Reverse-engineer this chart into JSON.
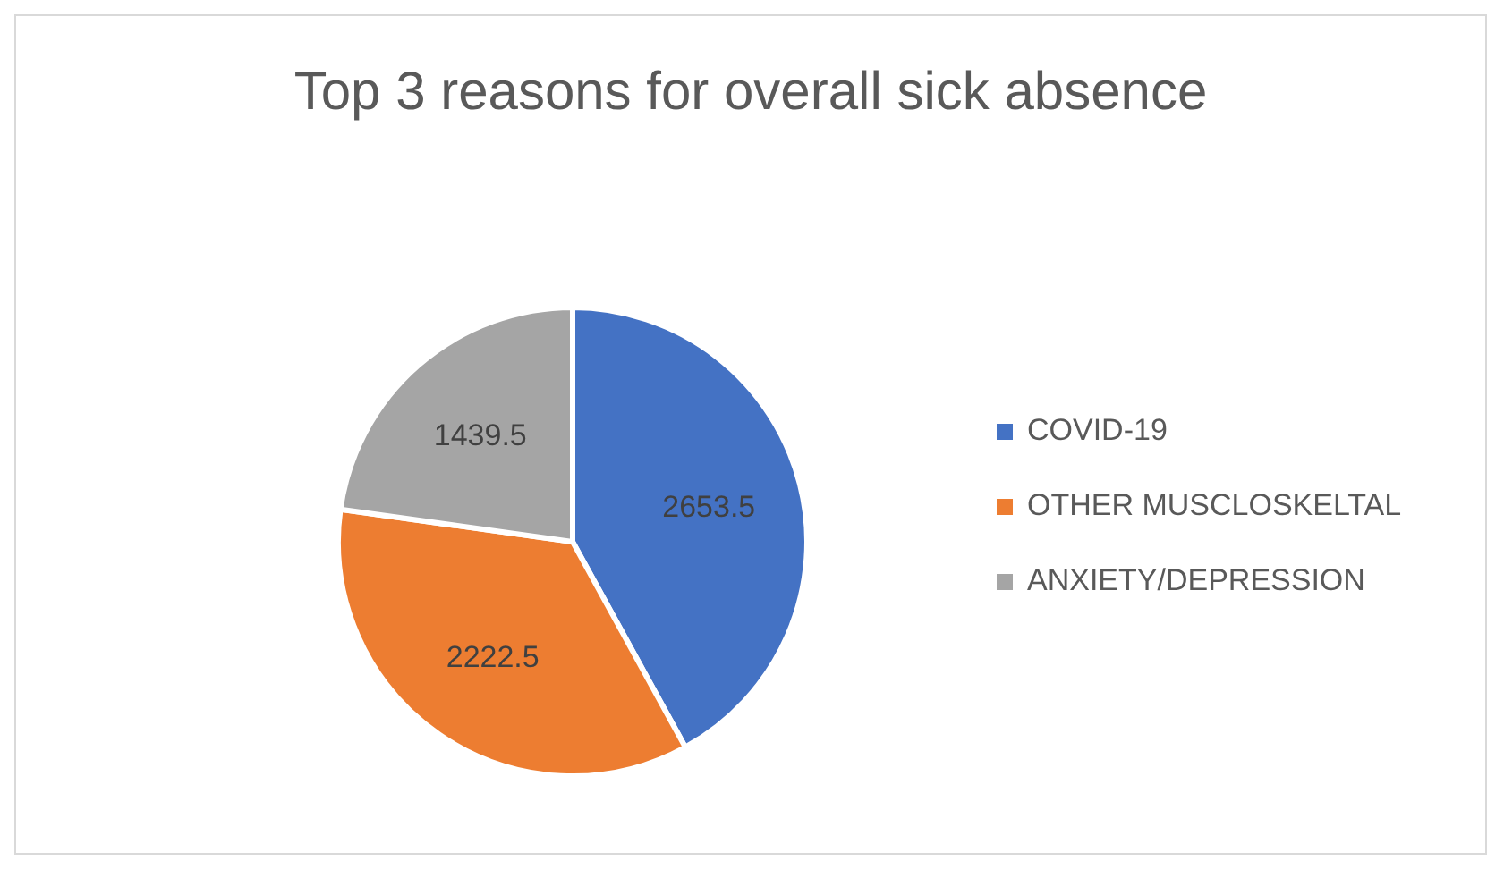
{
  "chart_data": {
    "type": "pie",
    "title": "Top 3 reasons for overall sick absence",
    "categories": [
      "COVID-19",
      "OTHER MUSCLOSKELTAL",
      "ANXIETY/DEPRESSION"
    ],
    "values": [
      2653.5,
      2222.5,
      1439.5
    ],
    "colors": [
      "#4472c4",
      "#ed7d31",
      "#a5a5a5"
    ],
    "data_labels": true,
    "legend": "right"
  }
}
